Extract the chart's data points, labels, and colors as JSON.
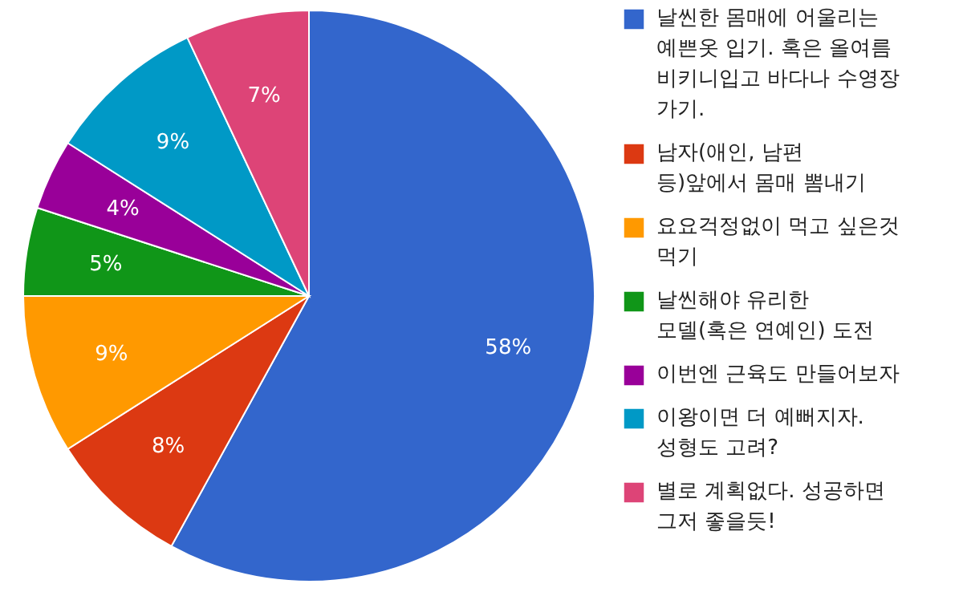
{
  "chart_data": {
    "type": "pie",
    "categories": [
      "날씬한 몸매에 어울리는 예쁜옷 입기. 혹은 올여름 비키니입고 바다나 수영장 가기.",
      "남자(애인, 남편 등)앞에서 몸매 뽐내기",
      "요요걱정없이 먹고 싶은것 먹기",
      "날씬해야 유리한 모델(혹은 연예인) 도전",
      "이번엔 근육도 만들어보자",
      "이왕이면 더 예뻐지자. 성형도 고려?",
      "별로 계획없다. 성공하면 그저 좋을듯!"
    ],
    "values": [
      58,
      8,
      9,
      5,
      4,
      9,
      7
    ],
    "value_labels": [
      "58%",
      "8%",
      "9%",
      "5%",
      "4%",
      "9%",
      "7%"
    ],
    "colors": [
      "#3366cc",
      "#dc3912",
      "#ff9900",
      "#109618",
      "#990099",
      "#0099c6",
      "#dd4477"
    ],
    "legend": "right"
  }
}
